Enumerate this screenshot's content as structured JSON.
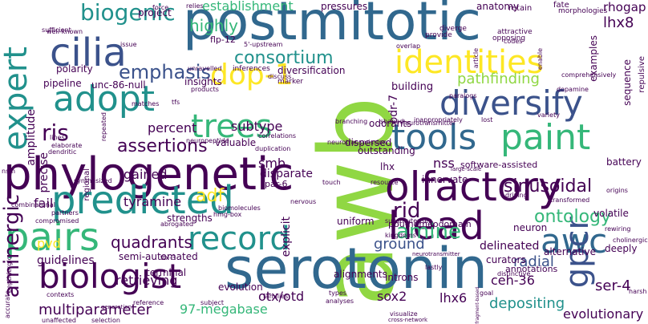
{
  "palette": {
    "purple": "#440154",
    "indigo": "#3b528b",
    "blue": "#31688e",
    "teal": "#21918c",
    "green": "#35b779",
    "lime": "#90d743",
    "yellow": "#fde725"
  },
  "words": [
    {
      "text": "postmitotic",
      "color": "#31688e"
    },
    {
      "text": "awb",
      "color": "#90d743"
    },
    {
      "text": "serotonin",
      "color": "#31688e"
    },
    {
      "text": "phylogenetic",
      "color": "#440154"
    },
    {
      "text": "olfactory",
      "color": "#440154"
    },
    {
      "text": "identities",
      "color": "#fde725"
    },
    {
      "text": "cilia",
      "color": "#3b528b"
    },
    {
      "text": "diversify",
      "color": "#3b528b"
    },
    {
      "text": "predicted",
      "color": "#21918c"
    },
    {
      "text": "tools",
      "color": "#31688e"
    },
    {
      "text": "paint",
      "color": "#35b779"
    },
    {
      "text": "head",
      "color": "#440154"
    },
    {
      "text": "awc",
      "color": "#31688e"
    },
    {
      "text": "adopt",
      "color": "#21918c"
    },
    {
      "text": "record",
      "color": "#21918c"
    },
    {
      "text": "pairs",
      "color": "#35b779"
    },
    {
      "text": "biologist",
      "color": "#440154"
    },
    {
      "text": "trees",
      "color": "#35b779"
    },
    {
      "text": "expert",
      "color": "#21918c"
    },
    {
      "text": "dop-1",
      "color": "#fde725"
    },
    {
      "text": "gpcr",
      "color": "#3b528b"
    },
    {
      "text": "biogenic",
      "color": "#21918c"
    },
    {
      "text": "consortium",
      "color": "#21918c"
    },
    {
      "text": "emphasis",
      "color": "#3b528b"
    },
    {
      "text": "sinusoidal",
      "color": "#440154"
    },
    {
      "text": "ontology",
      "color": "#35b779"
    },
    {
      "text": "amine",
      "color": "#35b779"
    },
    {
      "text": "aminergic",
      "color": "#440154"
    },
    {
      "text": "assertions",
      "color": "#440154"
    },
    {
      "text": "ris",
      "color": "#440154"
    },
    {
      "text": "rid",
      "color": "#440154"
    },
    {
      "text": "highly",
      "color": "#35b779"
    },
    {
      "text": "establishment",
      "color": "#35b779"
    },
    {
      "text": "lhx8",
      "color": "#440154"
    },
    {
      "text": "rhogap",
      "color": "#440154"
    },
    {
      "text": "pathfinding",
      "color": "#90d743"
    },
    {
      "text": "ser-4",
      "color": "#440154"
    },
    {
      "text": "sox2",
      "color": "#440154"
    },
    {
      "text": "otx/otd",
      "color": "#440154"
    },
    {
      "text": "lhx6",
      "color": "#440154"
    },
    {
      "text": "tyramine",
      "color": "#440154"
    },
    {
      "text": "quadrants",
      "color": "#440154"
    },
    {
      "text": "ground",
      "color": "#3b528b"
    },
    {
      "text": "radial",
      "color": "#3b528b"
    },
    {
      "text": "adf",
      "color": "#fde725"
    },
    {
      "text": "depositing",
      "color": "#21918c"
    },
    {
      "text": "multiparameter",
      "color": "#440154"
    },
    {
      "text": "97-megabase",
      "color": "#35b779"
    },
    {
      "text": "evolutionary",
      "color": "#440154"
    },
    {
      "text": "ceh-36",
      "color": "#440154"
    },
    {
      "text": "percent",
      "color": "#440154"
    },
    {
      "text": "subtype",
      "color": "#440154"
    },
    {
      "text": "gained",
      "color": "#440154"
    },
    {
      "text": "smb",
      "color": "#440154"
    },
    {
      "text": "nss",
      "color": "#440154"
    },
    {
      "text": "pvd",
      "color": "#fde725"
    },
    {
      "text": "fail",
      "color": "#440154"
    },
    {
      "text": "guidelines",
      "color": "#440154"
    },
    {
      "text": "retrieving",
      "color": "#440154"
    },
    {
      "text": "explicit",
      "color": "#440154"
    },
    {
      "text": "delineated",
      "color": "#440154"
    },
    {
      "text": "strengths",
      "color": "#440154"
    },
    {
      "text": "amplitude",
      "color": "#440154"
    },
    {
      "text": "precise",
      "color": "#440154"
    },
    {
      "text": "unc-86-null",
      "color": "#440154"
    },
    {
      "text": "pipeline",
      "color": "#440154"
    },
    {
      "text": "insights",
      "color": "#440154"
    },
    {
      "text": "polarity",
      "color": "#440154"
    },
    {
      "text": "diversification",
      "color": "#440154"
    },
    {
      "text": "building",
      "color": "#440154"
    },
    {
      "text": "outstanding",
      "color": "#440154"
    },
    {
      "text": "valuable",
      "color": "#440154"
    },
    {
      "text": "semi-automated",
      "color": "#440154"
    },
    {
      "text": "regional",
      "color": "#440154"
    },
    {
      "text": "lhx",
      "color": "#440154"
    },
    {
      "text": "pou-homeodomain",
      "color": "#440154"
    },
    {
      "text": "alignments",
      "color": "#440154"
    },
    {
      "text": "uniform",
      "color": "#440154"
    },
    {
      "text": "innervate",
      "color": "#440154"
    },
    {
      "text": "disparate",
      "color": "#440154"
    },
    {
      "text": "neuron",
      "color": "#440154"
    },
    {
      "text": "volatile",
      "color": "#440154"
    },
    {
      "text": "alternative",
      "color": "#440154"
    },
    {
      "text": "deeply",
      "color": "#440154"
    },
    {
      "text": "battery",
      "color": "#440154"
    },
    {
      "text": "odr-7",
      "color": "#440154"
    },
    {
      "text": "sequence",
      "color": "#440154"
    },
    {
      "text": "examples",
      "color": "#440154"
    },
    {
      "text": "repulsive",
      "color": "#440154"
    },
    {
      "text": "anatomy",
      "color": "#440154"
    },
    {
      "text": "pressures",
      "color": "#440154"
    },
    {
      "text": "project",
      "color": "#440154"
    },
    {
      "text": "flp-12",
      "color": "#440154"
    },
    {
      "text": "terminal",
      "color": "#440154"
    },
    {
      "text": "evolution",
      "color": "#440154"
    },
    {
      "text": "introns",
      "color": "#440154"
    },
    {
      "text": "odorants",
      "color": "#440154"
    },
    {
      "text": "dispersed",
      "color": "#440154"
    },
    {
      "text": "curators",
      "color": "#440154"
    },
    {
      "text": "annotations",
      "color": "#440154"
    },
    {
      "text": "software-assisted",
      "color": "#440154"
    },
    {
      "text": "par-6",
      "color": "#440154"
    },
    {
      "text": "marker",
      "color": "#440154"
    },
    {
      "text": "inferences",
      "color": "#440154"
    },
    {
      "text": "force",
      "color": "#440154"
    },
    {
      "text": "relies",
      "color": "#440154"
    },
    {
      "text": "retain",
      "color": "#440154"
    },
    {
      "text": "fate",
      "color": "#440154"
    },
    {
      "text": "morphologies",
      "color": "#440154"
    },
    {
      "text": "diverge",
      "color": "#440154"
    },
    {
      "text": "provide",
      "color": "#440154"
    },
    {
      "text": "issue",
      "color": "#440154"
    },
    {
      "text": "codes",
      "color": "#440154"
    },
    {
      "text": "attractive",
      "color": "#440154"
    },
    {
      "text": "opposing",
      "color": "#440154"
    },
    {
      "text": "comprehensively",
      "color": "#440154"
    },
    {
      "text": "paralogs",
      "color": "#440154"
    },
    {
      "text": "dopamine",
      "color": "#440154"
    },
    {
      "text": "lost",
      "color": "#440154"
    },
    {
      "text": "correlations",
      "color": "#440154"
    },
    {
      "text": "neurotransmission",
      "color": "#440154"
    },
    {
      "text": "inappropriately",
      "color": "#440154"
    },
    {
      "text": "variety",
      "color": "#440154"
    },
    {
      "text": "driving",
      "color": "#440154"
    },
    {
      "text": "resource",
      "color": "#440154"
    },
    {
      "text": "touch",
      "color": "#440154"
    },
    {
      "text": "duplication",
      "color": "#440154"
    },
    {
      "text": "branching",
      "color": "#440154"
    },
    {
      "text": "shaped",
      "color": "#440154"
    },
    {
      "text": "neurotransmitter",
      "color": "#440154"
    },
    {
      "text": "large-scale",
      "color": "#440154"
    },
    {
      "text": "generation",
      "color": "#440154"
    },
    {
      "text": "reference",
      "color": "#440154"
    },
    {
      "text": "subject",
      "color": "#440154"
    },
    {
      "text": "families",
      "color": "#440154"
    },
    {
      "text": "types",
      "color": "#440154"
    },
    {
      "text": "analyses",
      "color": "#440154"
    },
    {
      "text": "lastly",
      "color": "#440154"
    },
    {
      "text": "visualize",
      "color": "#440154"
    },
    {
      "text": "cross-network",
      "color": "#440154"
    },
    {
      "text": "neurotransmitter",
      "color": "#440154"
    },
    {
      "text": "distinctive",
      "color": "#440154"
    },
    {
      "text": "goal",
      "color": "#440154"
    },
    {
      "text": "harsh",
      "color": "#440154"
    },
    {
      "text": "fragment-based",
      "color": "#440154"
    },
    {
      "text": "rises",
      "color": "#440154"
    },
    {
      "text": "substitute",
      "color": "#440154"
    },
    {
      "text": "kingdoms",
      "color": "#440154"
    },
    {
      "text": "rewiring",
      "color": "#440154"
    },
    {
      "text": "cholinergic",
      "color": "#440154"
    },
    {
      "text": "origins",
      "color": "#440154"
    },
    {
      "text": "transformed",
      "color": "#440154"
    },
    {
      "text": "peptidergic",
      "color": "#440154"
    },
    {
      "text": "accurate",
      "color": "#440154"
    },
    {
      "text": "unaffected",
      "color": "#440154"
    },
    {
      "text": "selection",
      "color": "#440154"
    },
    {
      "text": "combinatorial",
      "color": "#440154"
    },
    {
      "text": "partners",
      "color": "#440154"
    },
    {
      "text": "sufficient",
      "color": "#440154"
    },
    {
      "text": "well-known",
      "color": "#440154"
    },
    {
      "text": "nsm",
      "color": "#440154"
    },
    {
      "text": "lines",
      "color": "#440154"
    },
    {
      "text": "elaborate",
      "color": "#440154"
    },
    {
      "text": "dendritic",
      "color": "#440154"
    },
    {
      "text": "synthesized",
      "color": "#440154"
    },
    {
      "text": "ttx-3",
      "color": "#440154"
    },
    {
      "text": "abrogated",
      "color": "#440154"
    },
    {
      "text": "biomolecules",
      "color": "#440154"
    },
    {
      "text": "hmg-box",
      "color": "#440154"
    },
    {
      "text": "compromised",
      "color": "#440154"
    },
    {
      "text": "contexts",
      "color": "#440154"
    },
    {
      "text": "nervous",
      "color": "#440154"
    },
    {
      "text": "neuropeptide",
      "color": "#440154"
    },
    {
      "text": "matches",
      "color": "#440154"
    },
    {
      "text": "repeated",
      "color": "#440154"
    },
    {
      "text": "products",
      "color": "#440154"
    },
    {
      "text": "tfs",
      "color": "#440154"
    },
    {
      "text": "discuss",
      "color": "#440154"
    },
    {
      "text": "unravelled",
      "color": "#440154"
    },
    {
      "text": "5'-upstream",
      "color": "#440154"
    },
    {
      "text": "overlap",
      "color": "#440154"
    },
    {
      "text": "article",
      "color": "#440154"
    },
    {
      "text": "enable",
      "color": "#440154"
    },
    {
      "text": "capabilities",
      "color": "#440154"
    },
    {
      "text": "help",
      "color": "#440154"
    },
    {
      "text": "genomic",
      "color": "#440154"
    },
    {
      "text": "exist",
      "color": "#440154"
    }
  ]
}
